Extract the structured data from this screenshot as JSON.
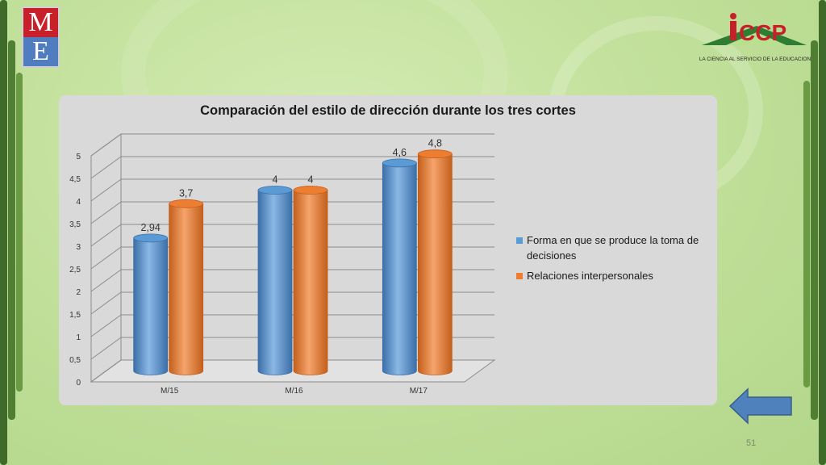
{
  "slide": {
    "page_number": "51",
    "logo_left": {
      "top_letter": "M",
      "bottom_letter": "E"
    },
    "logo_right": {
      "name": "iCCP",
      "tagline": "LA CIENCIA AL SERVICIO DE LA EDUCACION"
    }
  },
  "chart_data": {
    "type": "bar",
    "title": "Comparación del estilo de dirección durante los tres cortes",
    "categories": [
      "M/15",
      "M/16",
      "M/17"
    ],
    "series": [
      {
        "name": "Forma en que se produce la toma de decisiones",
        "values": [
          2.94,
          4,
          4.6
        ],
        "labels": [
          "2,94",
          "4",
          "4,6"
        ],
        "color": "#5b9bd5"
      },
      {
        "name": "Relaciones interpersonales",
        "values": [
          3.7,
          4,
          4.8
        ],
        "labels": [
          "3,7",
          "4",
          "4,8"
        ],
        "color": "#ed7d31"
      }
    ],
    "ylim": [
      0,
      5
    ],
    "yticks": [
      "0",
      "0,5",
      "1",
      "1,5",
      "2",
      "2,5",
      "3",
      "3,5",
      "4",
      "4,5",
      "5"
    ],
    "grid": true,
    "legend_position": "right",
    "style": "3d-cylinder"
  },
  "colors": {
    "panel_background": "#d9d9d9",
    "arrow": "#4f81bd"
  }
}
